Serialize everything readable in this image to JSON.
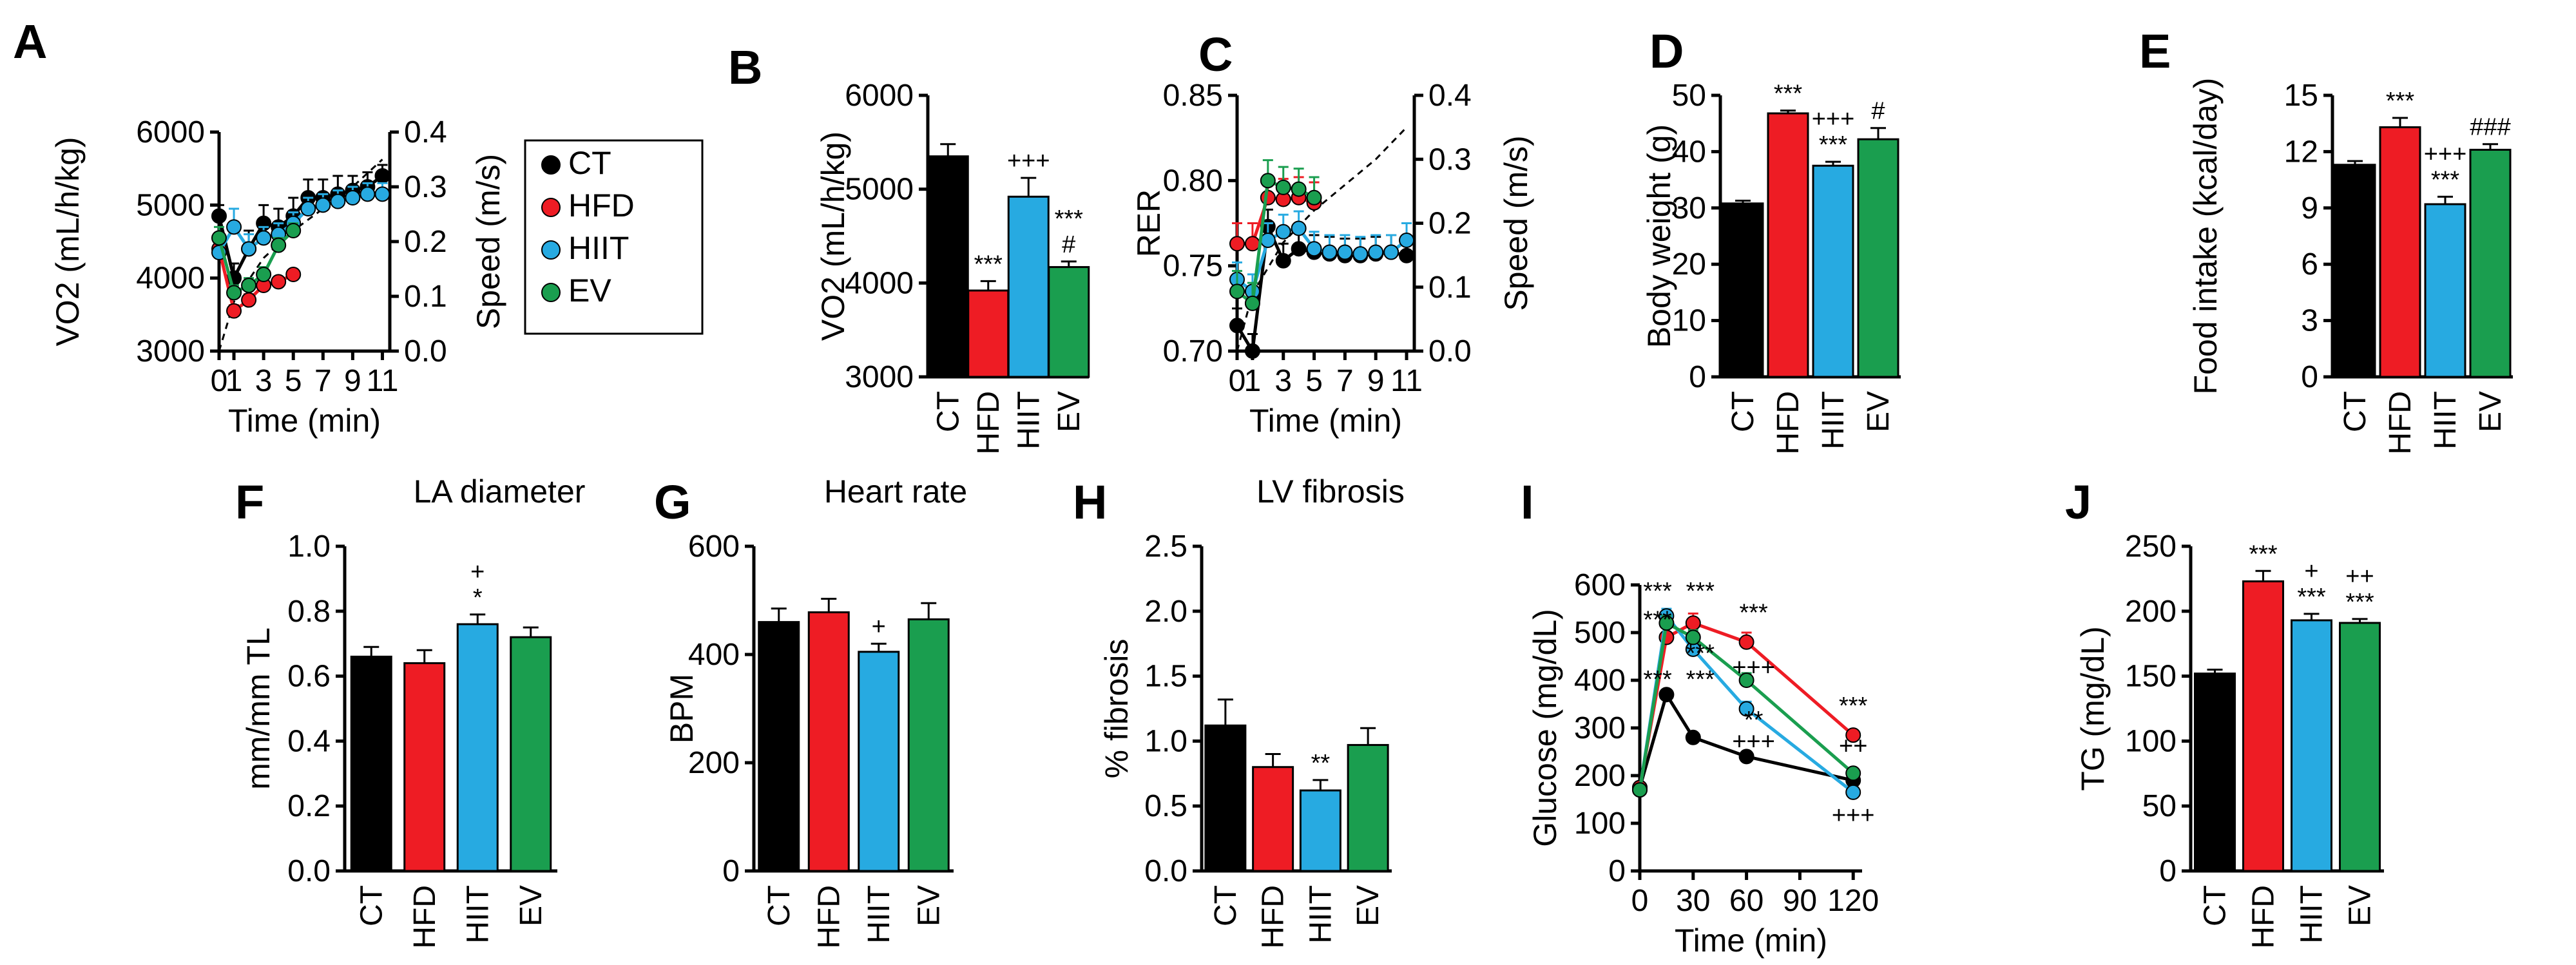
{
  "colors": {
    "CT": "#000000",
    "HFD": "#ee1c24",
    "HIIT": "#27aae1",
    "EV": "#1a9e4f"
  },
  "legend": {
    "entries": [
      "CT",
      "HFD",
      "HIIT",
      "EV"
    ]
  },
  "chart_data": [
    {
      "id": "A",
      "type": "line",
      "panel_label": "A",
      "ylabel": "VO2 (mL/h/kg)",
      "y2label": "Speed (m/s)",
      "xlabel": "Time (min)",
      "ylim": [
        3000,
        6000
      ],
      "yticks": [
        3000,
        4000,
        5000,
        6000
      ],
      "y2lim": [
        0,
        0.4
      ],
      "y2ticks": [
        0,
        0.1,
        0.2,
        0.3,
        0.4
      ],
      "xlim": [
        0,
        11.5
      ],
      "xticks": [
        0,
        1,
        3,
        5,
        7,
        9,
        11
      ],
      "xticklabels": [
        "0",
        "1",
        "3",
        "5",
        "7",
        "9",
        "11"
      ],
      "series": [
        {
          "name": "CT",
          "x": [
            0,
            1,
            2,
            3,
            4,
            5,
            6,
            7,
            8,
            9,
            10,
            11
          ],
          "values": [
            4850,
            4000,
            4400,
            4750,
            4700,
            4850,
            5100,
            5100,
            5150,
            5200,
            5250,
            5400
          ],
          "err": [
            150,
            200,
            250,
            250,
            250,
            250,
            250,
            250,
            250,
            200,
            200,
            150
          ]
        },
        {
          "name": "HFD",
          "x": [
            0,
            1,
            2,
            3,
            4,
            5
          ],
          "values": [
            4400,
            3550,
            3700,
            3900,
            3950,
            4050
          ],
          "err": [
            120,
            80,
            80,
            60,
            60,
            60
          ]
        },
        {
          "name": "HIIT",
          "x": [
            0,
            1,
            2,
            3,
            4,
            5,
            6,
            7,
            8,
            9,
            10,
            11
          ],
          "values": [
            4350,
            4700,
            4400,
            4550,
            4600,
            4750,
            4950,
            5000,
            5050,
            5100,
            5150,
            5150
          ],
          "err": [
            200,
            250,
            200,
            150,
            150,
            150,
            150,
            150,
            150,
            150,
            150,
            150
          ]
        },
        {
          "name": "EV",
          "x": [
            0,
            1,
            2,
            3,
            4,
            5
          ],
          "values": [
            4550,
            3800,
            3900,
            4050,
            4450,
            4650
          ],
          "err": [
            150,
            100,
            100,
            100,
            100,
            100
          ]
        }
      ],
      "speed": {
        "x": [
          0,
          1,
          3,
          5,
          7,
          9,
          11
        ],
        "values": [
          0,
          0.09,
          0.17,
          0.22,
          0.26,
          0.3,
          0.35
        ]
      }
    },
    {
      "id": "B",
      "type": "bar",
      "panel_label": "B",
      "ylabel": "VO2 (mL/h/kg)",
      "ylim": [
        3000,
        6000
      ],
      "yticks": [
        3000,
        4000,
        5000,
        6000
      ],
      "categories": [
        "CT",
        "HFD",
        "HIIT",
        "EV"
      ],
      "values": [
        5350,
        3920,
        4920,
        4170
      ],
      "err": [
        130,
        100,
        200,
        60
      ],
      "annotations": [
        [],
        [
          "***"
        ],
        [
          "+++"
        ],
        [
          "#",
          "***"
        ]
      ]
    },
    {
      "id": "C",
      "type": "line",
      "panel_label": "C",
      "ylabel": "RER",
      "y2label": "Speed (m/s)",
      "xlabel": "Time (min)",
      "ylim": [
        0.7,
        0.85
      ],
      "yticks": [
        0.7,
        0.75,
        0.8,
        0.85
      ],
      "y2lim": [
        0,
        0.4
      ],
      "y2ticks": [
        0,
        0.1,
        0.2,
        0.3,
        0.4
      ],
      "xlim": [
        0,
        11.5
      ],
      "xticks": [
        0,
        1,
        3,
        5,
        7,
        9,
        11
      ],
      "xticklabels": [
        "0",
        "1",
        "3",
        "5",
        "7",
        "9",
        "11"
      ],
      "series": [
        {
          "name": "CT",
          "x": [
            0,
            1,
            2,
            3,
            4,
            5,
            6,
            7,
            8,
            9,
            10,
            11
          ],
          "values": [
            0.715,
            0.7,
            0.773,
            0.753,
            0.76,
            0.758,
            0.757,
            0.756,
            0.756,
            0.757,
            0.758,
            0.756
          ],
          "err": [
            0.01,
            0.01,
            0.01,
            0.01,
            0.01,
            0.01,
            0.01,
            0.01,
            0.01,
            0.01,
            0.01,
            0.01
          ]
        },
        {
          "name": "HFD",
          "x": [
            0,
            1,
            2,
            3,
            4,
            5
          ],
          "values": [
            0.763,
            0.763,
            0.79,
            0.789,
            0.79,
            0.787
          ],
          "err": [
            0.012,
            0.012,
            0.012,
            0.012,
            0.012,
            0.012
          ]
        },
        {
          "name": "HIIT",
          "x": [
            0,
            1,
            2,
            3,
            4,
            5,
            6,
            7,
            8,
            9,
            10,
            11
          ],
          "values": [
            0.742,
            0.735,
            0.765,
            0.77,
            0.772,
            0.76,
            0.758,
            0.758,
            0.757,
            0.758,
            0.758,
            0.765
          ],
          "err": [
            0.01,
            0.01,
            0.01,
            0.01,
            0.01,
            0.01,
            0.01,
            0.01,
            0.01,
            0.01,
            0.01,
            0.01
          ]
        },
        {
          "name": "EV",
          "x": [
            0,
            1,
            2,
            3,
            4,
            5
          ],
          "values": [
            0.735,
            0.728,
            0.8,
            0.796,
            0.795,
            0.79
          ],
          "err": [
            0.012,
            0.012,
            0.012,
            0.012,
            0.012,
            0.012
          ]
        }
      ],
      "speed": {
        "x": [
          0,
          1,
          3,
          5,
          7,
          9,
          11
        ],
        "values": [
          0,
          0.09,
          0.17,
          0.22,
          0.26,
          0.3,
          0.35
        ]
      }
    },
    {
      "id": "D",
      "type": "bar",
      "panel_label": "D",
      "ylabel": "Body weight (g)",
      "ylim": [
        0,
        50
      ],
      "yticks": [
        0,
        10,
        20,
        30,
        40,
        50
      ],
      "categories": [
        "CT",
        "HFD",
        "HIIT",
        "EV"
      ],
      "values": [
        30.8,
        46.8,
        37.5,
        42.2
      ],
      "err": [
        0.5,
        0.5,
        0.7,
        2.0
      ],
      "annotations": [
        [],
        [
          "***"
        ],
        [
          "***",
          "+++"
        ],
        [
          "#"
        ]
      ]
    },
    {
      "id": "E",
      "type": "bar",
      "panel_label": "E",
      "ylabel": "Food intake (kcal/day)",
      "ylim": [
        0,
        15
      ],
      "yticks": [
        0,
        3,
        6,
        9,
        12,
        15
      ],
      "categories": [
        "CT",
        "HFD",
        "HIIT",
        "EV"
      ],
      "values": [
        11.3,
        13.3,
        9.2,
        12.1
      ],
      "err": [
        0.2,
        0.5,
        0.4,
        0.3
      ],
      "annotations": [
        [],
        [
          "***"
        ],
        [
          "***",
          "+++"
        ],
        [
          "###"
        ]
      ]
    },
    {
      "id": "F",
      "type": "bar",
      "panel_label": "F",
      "title": "LA diameter",
      "ylabel": "mm/mm TL",
      "ylim": [
        0,
        1.0
      ],
      "yticks": [
        0.0,
        0.2,
        0.4,
        0.6,
        0.8,
        1.0
      ],
      "categories": [
        "CT",
        "HFD",
        "HIIT",
        "EV"
      ],
      "values": [
        0.66,
        0.64,
        0.76,
        0.72
      ],
      "err": [
        0.03,
        0.04,
        0.03,
        0.03
      ],
      "annotations": [
        [],
        [],
        [
          "*",
          "+"
        ],
        []
      ]
    },
    {
      "id": "G",
      "type": "bar",
      "panel_label": "G",
      "title": "Heart rate",
      "ylabel": "BPM",
      "ylim": [
        0,
        600
      ],
      "yticks": [
        0,
        200,
        400,
        600
      ],
      "categories": [
        "CT",
        "HFD",
        "HIIT",
        "EV"
      ],
      "values": [
        460,
        478,
        405,
        465
      ],
      "err": [
        25,
        25,
        15,
        30
      ],
      "annotations": [
        [],
        [],
        [
          "+"
        ],
        []
      ]
    },
    {
      "id": "H",
      "type": "bar",
      "panel_label": "H",
      "title": "LV fibrosis",
      "ylabel": "% fibrosis",
      "ylim": [
        0,
        2.5
      ],
      "yticks": [
        0.0,
        0.5,
        1.0,
        1.5,
        2.0,
        2.5
      ],
      "categories": [
        "CT",
        "HFD",
        "HIIT",
        "EV"
      ],
      "values": [
        1.12,
        0.8,
        0.62,
        0.97
      ],
      "err": [
        0.2,
        0.1,
        0.08,
        0.13
      ],
      "annotations": [
        [],
        [],
        [
          "**"
        ],
        []
      ]
    },
    {
      "id": "I",
      "type": "line",
      "panel_label": "I",
      "ylabel": "Glucose (mg/dL)",
      "xlabel": "Time (min)",
      "ylim": [
        0,
        600
      ],
      "yticks": [
        0,
        100,
        200,
        300,
        400,
        500,
        600
      ],
      "xlim": [
        0,
        125
      ],
      "xticks": [
        0,
        30,
        60,
        90,
        120
      ],
      "series": [
        {
          "name": "CT",
          "x": [
            0,
            15,
            30,
            60,
            120
          ],
          "values": [
            175,
            370,
            280,
            240,
            190
          ],
          "err": [
            8,
            10,
            10,
            8,
            8
          ]
        },
        {
          "name": "HFD",
          "x": [
            0,
            15,
            30,
            60,
            120
          ],
          "values": [
            175,
            490,
            520,
            480,
            285
          ],
          "err": [
            10,
            20,
            20,
            20,
            10
          ]
        },
        {
          "name": "HIIT",
          "x": [
            0,
            15,
            30,
            60,
            120
          ],
          "values": [
            170,
            535,
            465,
            340,
            165
          ],
          "err": [
            10,
            15,
            15,
            15,
            10
          ]
        },
        {
          "name": "EV",
          "x": [
            0,
            15,
            30,
            60,
            120
          ],
          "values": [
            170,
            520,
            490,
            400,
            205
          ],
          "err": [
            10,
            15,
            15,
            15,
            10
          ]
        }
      ],
      "annotations": [
        {
          "text": "***",
          "x": 10,
          "y": 570
        },
        {
          "text": "***",
          "x": 10,
          "y": 510
        },
        {
          "text": "***",
          "x": 10,
          "y": 385
        },
        {
          "text": "***",
          "x": 34,
          "y": 570
        },
        {
          "text": "***",
          "x": 34,
          "y": 440
        },
        {
          "text": "***",
          "x": 34,
          "y": 385
        },
        {
          "text": "***",
          "x": 64,
          "y": 525
        },
        {
          "text": "+++",
          "x": 64,
          "y": 410
        },
        {
          "text": "**",
          "x": 64,
          "y": 300
        },
        {
          "text": "+++",
          "x": 64,
          "y": 255
        },
        {
          "text": "***",
          "x": 120,
          "y": 330
        },
        {
          "text": "++",
          "x": 120,
          "y": 245
        },
        {
          "text": "+++",
          "x": 120,
          "y": 100
        }
      ]
    },
    {
      "id": "J",
      "type": "bar",
      "panel_label": "J",
      "ylabel": "TG (mg/dL)",
      "ylim": [
        0,
        250
      ],
      "yticks": [
        0,
        50,
        100,
        150,
        200,
        250
      ],
      "categories": [
        "CT",
        "HFD",
        "HIIT",
        "EV"
      ],
      "values": [
        152,
        223,
        193,
        191
      ],
      "err": [
        3,
        8,
        5,
        3
      ],
      "annotations": [
        [],
        [
          "***"
        ],
        [
          "***",
          "+"
        ],
        [
          "***",
          "++"
        ]
      ]
    }
  ]
}
